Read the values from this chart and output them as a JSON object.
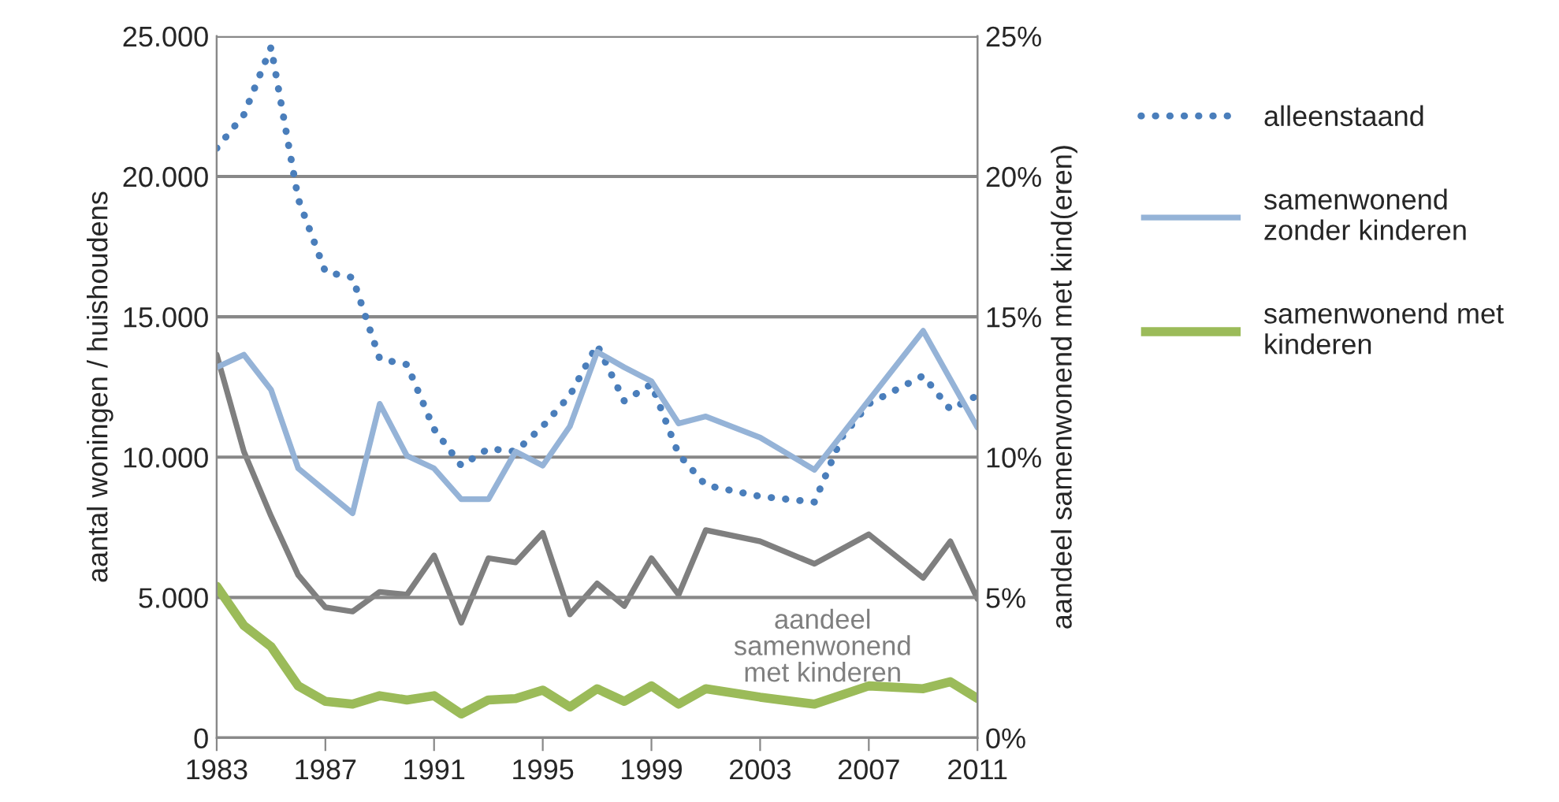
{
  "chart_data": {
    "type": "line",
    "xlabel": null,
    "ylabel": "aantal woningen / huishoudens",
    "y2label": "aandeel samenwonend met kind(eren)",
    "xlim": [
      1983,
      2011
    ],
    "xticks": [
      1983,
      1987,
      1991,
      1995,
      1999,
      2003,
      2007,
      2011
    ],
    "ylim": [
      0,
      25000
    ],
    "yticks": [
      {
        "value": 0,
        "label": "0"
      },
      {
        "value": 5000,
        "label": "5.000"
      },
      {
        "value": 10000,
        "label": "10.000"
      },
      {
        "value": 15000,
        "label": "15.000"
      },
      {
        "value": 20000,
        "label": "20.000"
      },
      {
        "value": 25000,
        "label": "25.000"
      }
    ],
    "y2lim": [
      0,
      25
    ],
    "y2ticks": [
      {
        "value": 0,
        "label": "0%"
      },
      {
        "value": 5,
        "label": "5%"
      },
      {
        "value": 10,
        "label": "10%"
      },
      {
        "value": 15,
        "label": "15%"
      },
      {
        "value": 20,
        "label": "20%"
      },
      {
        "value": 25,
        "label": "25%"
      }
    ],
    "grid": "y",
    "legend": "right",
    "series": [
      {
        "name": "alleenstaand",
        "color": "#4a7ebb",
        "line_style": "dotted",
        "x": [
          1983,
          1984,
          1985,
          1986,
          1987,
          1988,
          1989,
          1990,
          1991,
          1992,
          1993,
          1994,
          1995,
          1996,
          1997,
          1998,
          1999,
          2000,
          2001,
          2002,
          2003,
          2004,
          2005,
          2006,
          2007,
          2008,
          2009,
          2010,
          2011
        ],
        "values": [
          21000,
          22200,
          24600,
          19200,
          16600,
          16400,
          13500,
          13300,
          11000,
          9700,
          10300,
          10200,
          11100,
          12200,
          14000,
          12000,
          12600,
          10100,
          9000,
          8800,
          8600,
          8500,
          8400,
          10700,
          11900,
          12400,
          12900,
          11700,
          12200
        ]
      },
      {
        "name": "samenwonend zonder kinderen",
        "color": "#95b3d7",
        "line_style": "solid",
        "x": [
          1983,
          1984,
          1985,
          1986,
          1988,
          1989,
          1990,
          1991,
          1992,
          1993,
          1994,
          1995,
          1996,
          1997,
          1998,
          1999,
          2000,
          2001,
          2003,
          2005,
          2009,
          2011
        ],
        "values": [
          13200,
          13650,
          12400,
          9600,
          8000,
          11900,
          10050,
          9600,
          8500,
          8500,
          10200,
          9700,
          11100,
          13750,
          13200,
          12700,
          11200,
          11450,
          10700,
          9550,
          14500,
          11050
        ]
      },
      {
        "name": "samenwonend met kinderen",
        "color": "#9bbb59",
        "line_style": "solid",
        "x": [
          1983,
          1984,
          1985,
          1986,
          1987,
          1988,
          1989,
          1990,
          1991,
          1992,
          1993,
          1994,
          1995,
          1996,
          1997,
          1998,
          1999,
          2000,
          2001,
          2003,
          2005,
          2007,
          2009,
          2010,
          2011
        ],
        "values": [
          5400,
          4000,
          3250,
          1850,
          1300,
          1200,
          1500,
          1350,
          1500,
          850,
          1350,
          1400,
          1700,
          1100,
          1750,
          1300,
          1850,
          1200,
          1750,
          1450,
          1200,
          1850,
          1750,
          2000,
          1400
        ]
      },
      {
        "name": "aandeel samenwonend met kinderen",
        "color": "#7f7f7f",
        "line_style": "solid",
        "axis": "y2",
        "x": [
          1983,
          1984,
          1985,
          1986,
          1987,
          1988,
          1989,
          1990,
          1991,
          1992,
          1993,
          1994,
          1995,
          1996,
          1997,
          1998,
          1999,
          2000,
          2001,
          2003,
          2005,
          2007,
          2009,
          2010,
          2011
        ],
        "values": [
          13.65,
          10.2,
          7.9,
          5.8,
          4.65,
          4.5,
          5.2,
          5.1,
          6.5,
          4.1,
          6.4,
          6.25,
          7.3,
          4.4,
          5.5,
          4.7,
          6.4,
          5.1,
          7.4,
          7.0,
          6.2,
          7.25,
          5.7,
          7.0,
          4.95
        ]
      }
    ]
  }
}
